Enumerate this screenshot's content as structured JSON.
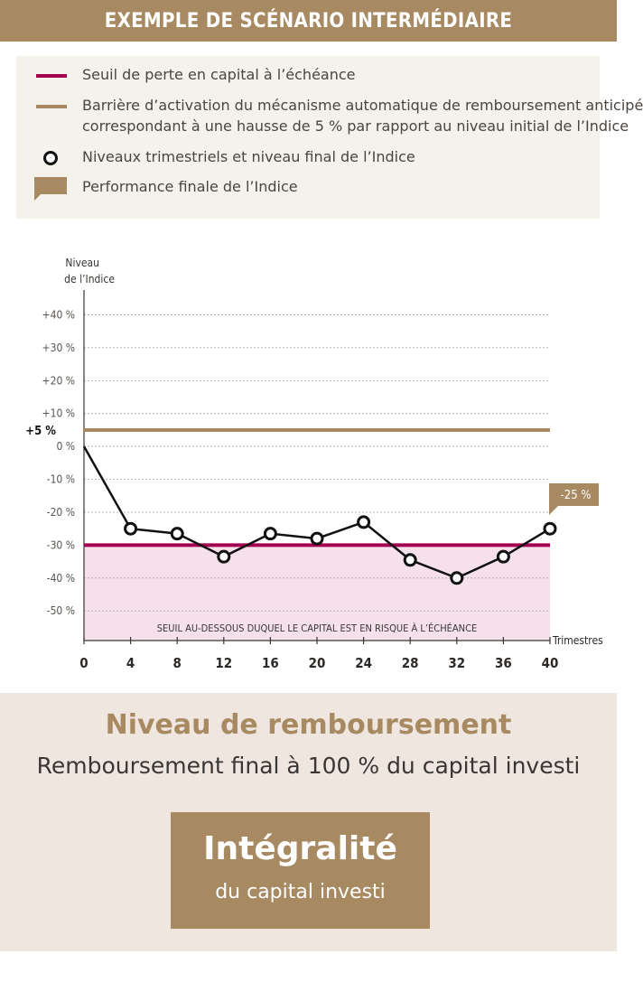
{
  "header": {
    "title": "EXEMPLE DE SCÉNARIO INTERMÉDIAIRE"
  },
  "legend": {
    "items": [
      {
        "label": "Seuil de perte en capital à l’échéance",
        "symbol": "line",
        "color": "#a4004f"
      },
      {
        "label_line1": "Barrière d’activation du mécanisme automatique de remboursement anticipé",
        "label_line2": "correspondant à une hausse de 5 % par rapport au niveau initial de l’Indice",
        "symbol": "line",
        "color": "#a88a62"
      },
      {
        "label": "Niveaux trimestriels et niveau final de l’Indice",
        "symbol": "circle",
        "color": "#111111"
      },
      {
        "label": "Performance finale de l’Indice",
        "symbol": "flag",
        "color": "#a88a62"
      }
    ]
  },
  "chart_data": {
    "type": "line",
    "ylabel_line1": "Niveau",
    "ylabel_line2": "de l’Indice",
    "xlabel": "Trimestres",
    "ylim": [
      -59,
      47
    ],
    "yticks": [
      {
        "v": 40,
        "label": "+40 %"
      },
      {
        "v": 30,
        "label": "+30 %"
      },
      {
        "v": 20,
        "label": "+20 %"
      },
      {
        "v": 10,
        "label": "+10 %"
      },
      {
        "v": 0,
        "label": "0 %"
      },
      {
        "v": -10,
        "label": "-10 %"
      },
      {
        "v": -20,
        "label": "-20 %"
      },
      {
        "v": -30,
        "label": "-30 %"
      },
      {
        "v": -40,
        "label": "-40 %"
      },
      {
        "v": -50,
        "label": "-50 %"
      }
    ],
    "xticks": [
      0,
      4,
      8,
      12,
      16,
      20,
      24,
      28,
      32,
      36,
      40
    ],
    "grid": true,
    "series": [
      {
        "x": [
          0,
          4,
          8,
          12,
          16,
          20,
          24,
          28,
          32,
          36,
          40
        ],
        "values": [
          0,
          -25,
          -26.5,
          -33.5,
          -26.5,
          -28,
          -23,
          -34.5,
          -40,
          -33.5,
          -25
        ],
        "marker_start_index": 1
      }
    ],
    "barrier": {
      "value": 5,
      "label": "+5 %",
      "color": "#a88a62"
    },
    "threshold": {
      "value": -30,
      "color": "#a4004f"
    },
    "risk_zone": {
      "from": -30,
      "to": -59,
      "color": "#f5e0ec",
      "label": "SEUIL AU-DESSOUS DUQUEL LE CAPITAL EST EN RISQUE À L’ÉCHÉANCE"
    },
    "final_label": "-25 %"
  },
  "repayment": {
    "title": "Niveau de remboursement",
    "subtitle": "Remboursement final à 100 % du capital investi",
    "box_line1": "Intégralité",
    "box_line2": "du capital investi"
  }
}
